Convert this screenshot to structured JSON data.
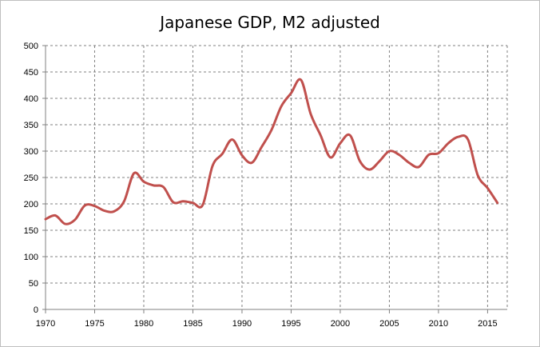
{
  "chart_data": {
    "type": "line",
    "title": "Japanese GDP, M2 adjusted",
    "xlabel": "",
    "ylabel": "",
    "xlim": [
      1970,
      2017
    ],
    "ylim": [
      0,
      500
    ],
    "x_ticks": [
      "1970",
      "1975",
      "1980",
      "1985",
      "1990",
      "1995",
      "2000",
      "2005",
      "2010",
      "2015"
    ],
    "y_ticks": [
      "0",
      "50",
      "100",
      "150",
      "200",
      "250",
      "300",
      "350",
      "400",
      "450",
      "500"
    ],
    "grid": "dashed",
    "legend": "none",
    "line_color": "#c0504d",
    "series": [
      {
        "x": [
          1970,
          1971,
          1972,
          1973,
          1974,
          1975,
          1976,
          1977,
          1978,
          1979,
          1980,
          1981,
          1982,
          1983,
          1984,
          1985,
          1986,
          1987,
          1988,
          1989,
          1990,
          1991,
          1992,
          1993,
          1994,
          1995,
          1996,
          1997,
          1998,
          1999,
          2000,
          2001,
          2002,
          2003,
          2004,
          2005,
          2006,
          2007,
          2008,
          2009,
          2010,
          2011,
          2012,
          2013,
          2014,
          2015,
          2016
        ],
        "values": [
          171,
          178,
          162,
          170,
          197,
          196,
          187,
          186,
          205,
          258,
          242,
          235,
          232,
          203,
          205,
          202,
          198,
          272,
          295,
          322,
          292,
          278,
          308,
          340,
          385,
          410,
          435,
          370,
          330,
          288,
          315,
          330,
          281,
          265,
          281,
          300,
          293,
          278,
          270,
          293,
          296,
          315,
          327,
          322,
          254,
          230,
          202
        ]
      }
    ]
  }
}
